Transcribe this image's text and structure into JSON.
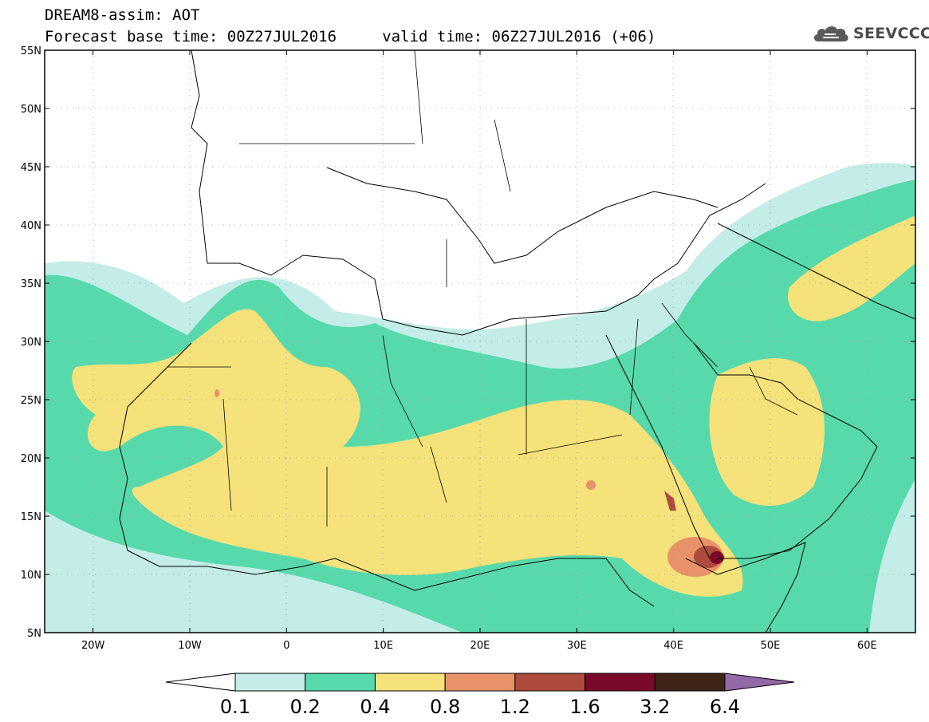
{
  "header": {
    "line1": "DREAM8-assim: AOT",
    "line2": "Forecast base time: 00Z27JUL2016     valid time: 06Z27JUL2016 (+06)"
  },
  "logo": {
    "text": "SEEVCCC",
    "icon": "cloud-icon"
  },
  "map": {
    "projection": "lat-lon",
    "lon_range": [
      -25,
      65
    ],
    "lat_range": [
      5,
      55
    ],
    "lat_ticks": [
      {
        "value": 55,
        "label": "55N"
      },
      {
        "value": 50,
        "label": "50N"
      },
      {
        "value": 45,
        "label": "45N"
      },
      {
        "value": 40,
        "label": "40N"
      },
      {
        "value": 35,
        "label": "35N"
      },
      {
        "value": 30,
        "label": "30N"
      },
      {
        "value": 25,
        "label": "25N"
      },
      {
        "value": 20,
        "label": "20N"
      },
      {
        "value": 15,
        "label": "15N"
      },
      {
        "value": 10,
        "label": "10N"
      },
      {
        "value": 5,
        "label": "5N"
      }
    ],
    "lon_ticks": [
      {
        "value": -20,
        "label": "20W"
      },
      {
        "value": -10,
        "label": "10W"
      },
      {
        "value": 0,
        "label": "0"
      },
      {
        "value": 10,
        "label": "10E"
      },
      {
        "value": 20,
        "label": "20E"
      },
      {
        "value": 30,
        "label": "30E"
      },
      {
        "value": 40,
        "label": "40E"
      },
      {
        "value": 50,
        "label": "50E"
      },
      {
        "value": 60,
        "label": "60E"
      }
    ],
    "grid": "dotted"
  },
  "colorbar": {
    "labels": [
      "0.1",
      "0.2",
      "0.4",
      "0.8",
      "1.2",
      "1.6",
      "3.2",
      "6.4"
    ],
    "colors": [
      "#ffffff",
      "#c3ede6",
      "#58d9ac",
      "#f5e27a",
      "#e8926a",
      "#ad4b3c",
      "#7a0a2a",
      "#3e2517",
      "#9469a8"
    ]
  }
}
